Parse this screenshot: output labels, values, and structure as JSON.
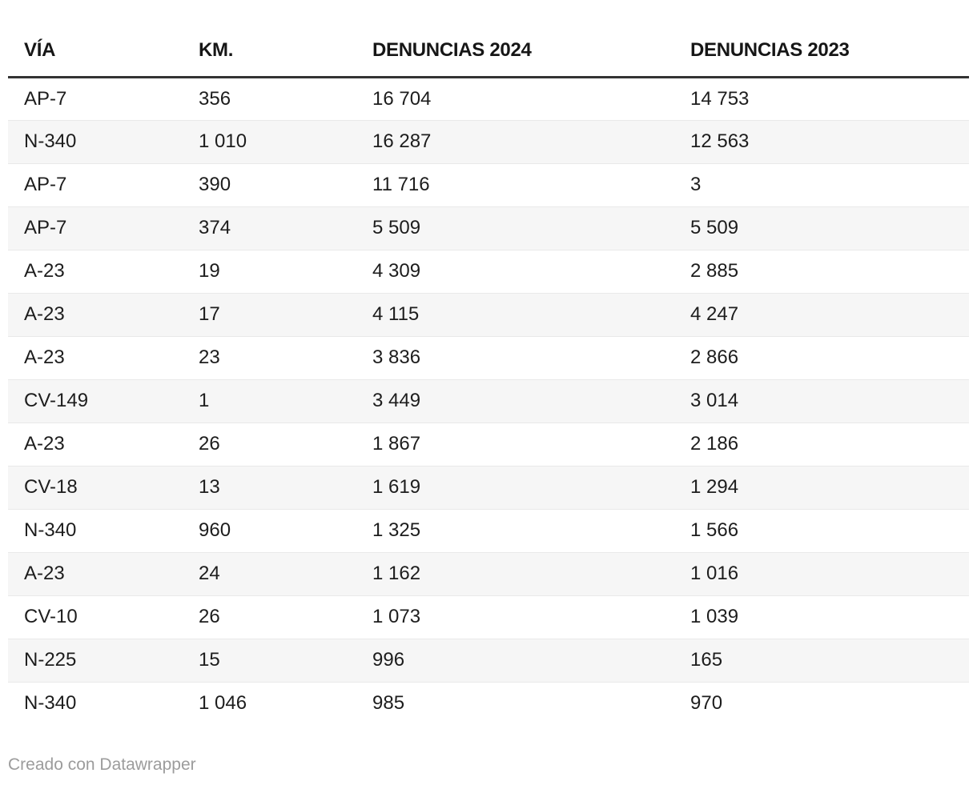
{
  "chart_data": {
    "type": "table",
    "columns": [
      "VÍA",
      "KM.",
      "DENUNCIAS 2024",
      "DENUNCIAS 2023"
    ],
    "rows": [
      [
        "AP-7",
        "356",
        "16 704",
        "14 753"
      ],
      [
        "N-340",
        "1 010",
        "16 287",
        "12 563"
      ],
      [
        "AP-7",
        "390",
        "11 716",
        "3"
      ],
      [
        "AP-7",
        "374",
        "5 509",
        "5 509"
      ],
      [
        "A-23",
        "19",
        "4 309",
        "2 885"
      ],
      [
        "A-23",
        "17",
        "4 115",
        "4 247"
      ],
      [
        "A-23",
        "23",
        "3 836",
        "2 866"
      ],
      [
        "CV-149",
        "1",
        "3 449",
        "3 014"
      ],
      [
        "A-23",
        "26",
        "1 867",
        "2 186"
      ],
      [
        "CV-18",
        "13",
        "1 619",
        "1 294"
      ],
      [
        "N-340",
        "960",
        "1 325",
        "1 566"
      ],
      [
        "A-23",
        "24",
        "1 162",
        "1 016"
      ],
      [
        "CV-10",
        "26",
        "1 073",
        "1 039"
      ],
      [
        "N-225",
        "15",
        "996",
        "165"
      ],
      [
        "N-340",
        "1 046",
        "985",
        "970"
      ]
    ],
    "title": "",
    "layout": {
      "striped_rows": true,
      "stripe_on_even_rows": true,
      "header_rule": "thick-dark",
      "alignment": "left"
    }
  },
  "footer": {
    "credit": "Creado con Datawrapper"
  },
  "colors": {
    "header_border": "#333333",
    "header_text": "#161616",
    "body_text": "#1d1d1d",
    "row_stripe": "#f6f6f6",
    "row_divider": "#e9e9e9",
    "credit_text": "#9c9c9c",
    "background": "#ffffff"
  }
}
